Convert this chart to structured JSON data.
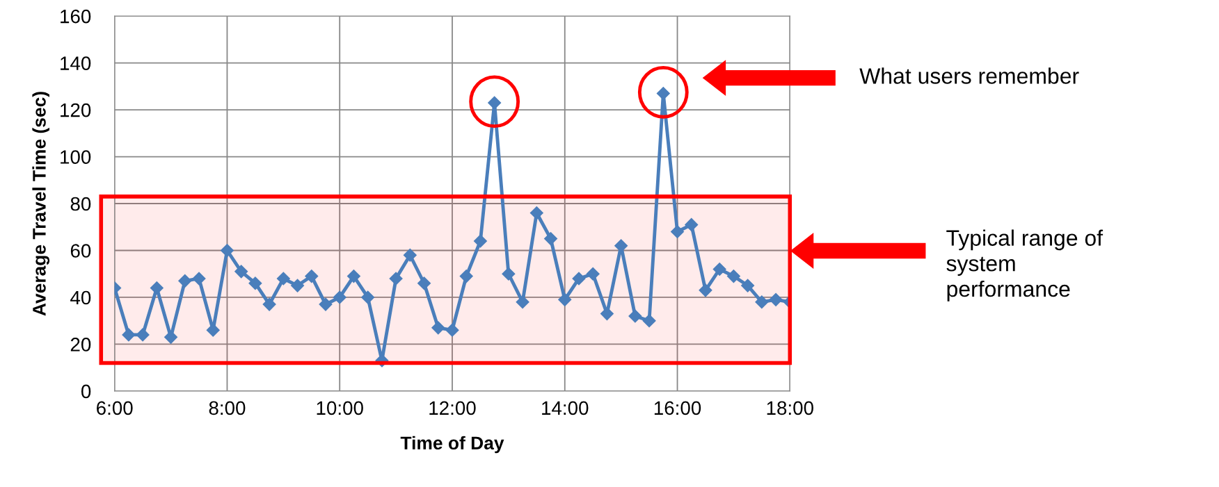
{
  "chart_data": {
    "type": "line",
    "xlabel": "Time of Day",
    "ylabel": "Average Travel Time (sec)",
    "x": [
      6,
      6.25,
      6.5,
      6.75,
      7,
      7.25,
      7.5,
      7.75,
      8,
      8.25,
      8.5,
      8.75,
      9,
      9.25,
      9.5,
      9.75,
      10,
      10.25,
      10.5,
      10.75,
      11,
      11.25,
      11.5,
      11.75,
      12,
      12.25,
      12.5,
      12.75,
      13,
      13.25,
      13.5,
      13.75,
      14,
      14.25,
      14.5,
      14.75,
      15,
      15.25,
      15.5,
      15.75,
      16,
      16.25,
      16.5,
      16.75,
      17,
      17.25,
      17.5,
      17.75,
      18
    ],
    "series": [
      {
        "color": "#4a7ebb",
        "values": [
          44,
          24,
          24,
          44,
          23,
          47,
          48,
          26,
          60,
          51,
          46,
          37,
          48,
          45,
          49,
          37,
          40,
          49,
          40,
          13,
          48,
          58,
          46,
          27,
          26,
          49,
          64,
          123,
          50,
          38,
          76,
          65,
          39,
          48,
          50,
          33,
          62,
          32,
          30,
          127,
          68,
          71,
          43,
          52,
          49,
          45,
          38,
          39,
          38
        ]
      }
    ],
    "xlim": [
      6,
      18
    ],
    "xticks": [
      {
        "value": 6,
        "label": "6:00"
      },
      {
        "value": 8,
        "label": "8:00"
      },
      {
        "value": 10,
        "label": "10:00"
      },
      {
        "value": 12,
        "label": "12:00"
      },
      {
        "value": 14,
        "label": "14:00"
      },
      {
        "value": 16,
        "label": "16:00"
      },
      {
        "value": 18,
        "label": "18:00"
      }
    ],
    "ylim": [
      0,
      160
    ],
    "yticks": [
      0,
      20,
      40,
      60,
      80,
      100,
      120,
      140,
      160
    ],
    "grid": true,
    "marker": "diamond",
    "line_style": "solid",
    "bands": [
      {
        "axis": "y",
        "from": 12,
        "to": 83,
        "color": "#ff0000"
      }
    ],
    "annotations": [
      "What users remember",
      "Typical range of\nsystem\nperformance"
    ]
  }
}
